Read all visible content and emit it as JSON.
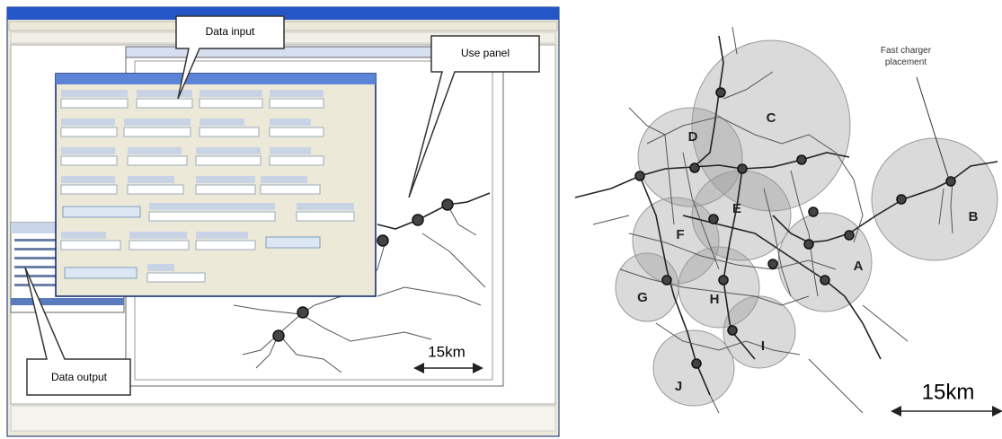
{
  "left": {
    "callouts": {
      "data_input": "Data input",
      "use_panel": "Use panel",
      "data_output": "Data output"
    },
    "scale_label": "15km"
  },
  "right": {
    "annotation": "Fast charger placement",
    "regions": [
      "A",
      "B",
      "C",
      "D",
      "E",
      "F",
      "G",
      "H",
      "I",
      "J"
    ],
    "scale_label": "15km"
  }
}
